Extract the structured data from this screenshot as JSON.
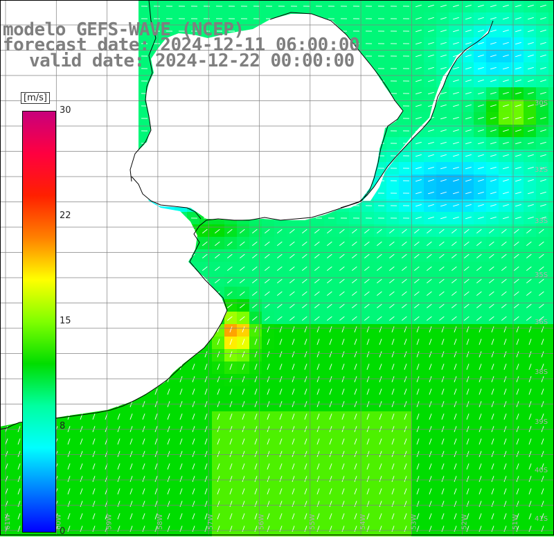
{
  "title": {
    "model": "modelo GEFS-WAVE (NCEP)",
    "forecast": "forecast date: 2024-12-11 06:00:00",
    "valid": "valid date: 2024-12-22 00:00:00"
  },
  "colorbar": {
    "unit": "[m/s]",
    "ticks": [
      "30",
      "22",
      "15",
      "8",
      "0"
    ],
    "colors": [
      "#0000ff",
      "#0080ff",
      "#00e5ff",
      "#00ff80",
      "#00d800",
      "#80ff00",
      "#ffff00",
      "#ff8000",
      "#ff0000",
      "#ff0080",
      "#c00080"
    ]
  },
  "map": {
    "lon_labels": [
      "61W",
      "60W",
      "59W",
      "58W",
      "57W",
      "56W",
      "55W",
      "54W",
      "53W",
      "52W",
      "51W"
    ],
    "lat_labels": [
      "30S",
      "32S",
      "33S",
      "35S",
      "36S",
      "38S",
      "39S",
      "40S",
      "41S"
    ],
    "land_color": "#ffffff",
    "coast_color": "#000000",
    "grid_color": "#808080",
    "arrow_color": "#ffffff",
    "wind_field_description": "wind speed ~8-14 m/s over the ocean; calmer blue patches near 31-33S off Uruguay/Brazil; yellow maximum ~15-17 m/s near Mar del Plata"
  }
}
